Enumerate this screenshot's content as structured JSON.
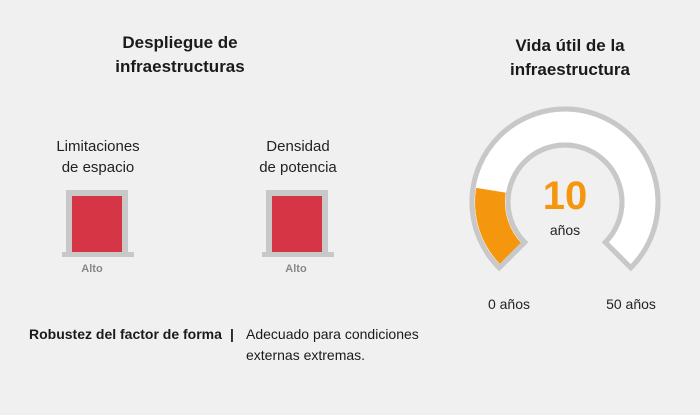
{
  "left_panel": {
    "title": "Despliegue de infraestructuras",
    "meters": [
      {
        "label_line1": "Limitaciones",
        "label_line2": "de espacio",
        "level": "Alto",
        "fill_fraction": 1.0
      },
      {
        "label_line1": "Densidad",
        "label_line2": "de potencia",
        "level": "Alto",
        "fill_fraction": 1.0
      }
    ]
  },
  "right_panel": {
    "title_line1": "Vida útil de la",
    "title_line2": "infraestructura",
    "gauge": {
      "value": "10",
      "unit": "años",
      "min_label": "0 años",
      "max_label": "50 años",
      "min": 0,
      "max": 50,
      "current": 10
    }
  },
  "footer": {
    "label": "Robustez del factor de forma",
    "separator": "|",
    "text_line1": "Adecuado para condiciones",
    "text_line2": "externas extremas."
  },
  "colors": {
    "meter_fill": "#d63545",
    "gauge_fill": "#f5960f",
    "gauge_track": "#c8c8c8",
    "background": "#f0f0f0"
  }
}
